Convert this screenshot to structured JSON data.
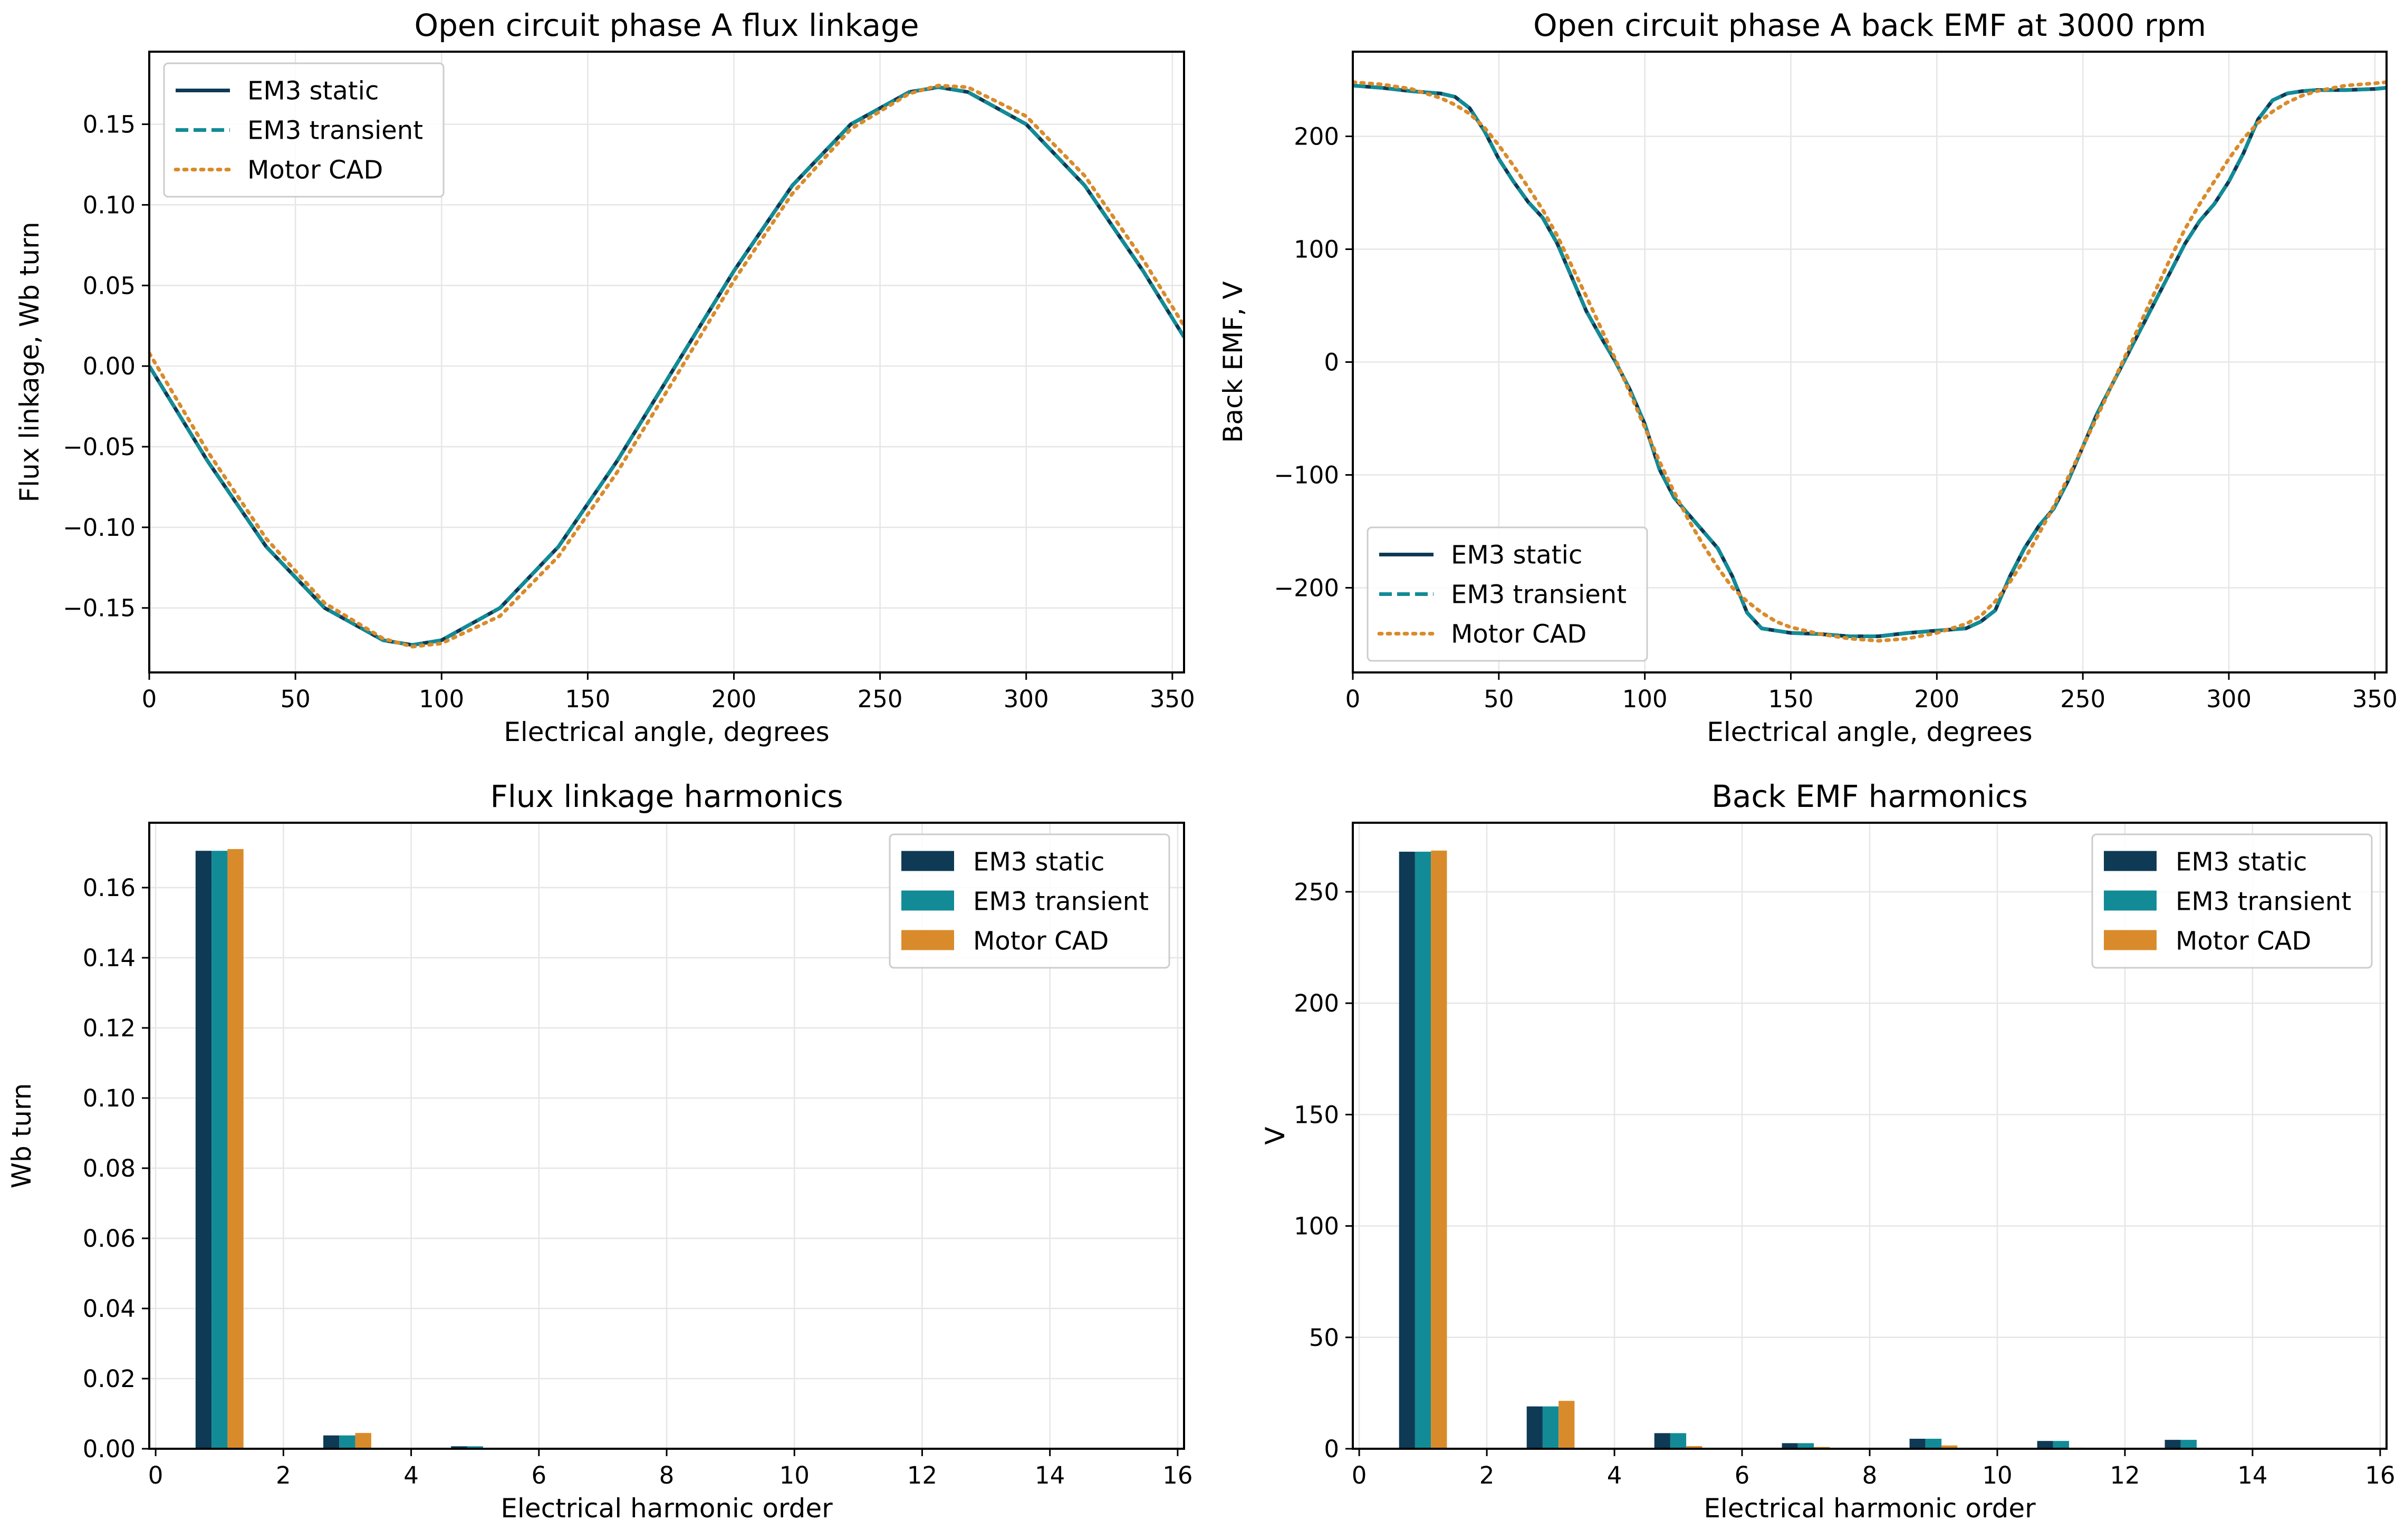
{
  "colors": {
    "em3_static": "#0e3a55",
    "em3_transient": "#128b96",
    "motor_cad": "#d98b2b"
  },
  "chart_data": [
    {
      "type": "line",
      "title": "Open circuit phase A flux linkage",
      "xlabel": "Electrical angle, degrees",
      "ylabel": "Flux linkage, Wb turn",
      "xlim": [
        0,
        354
      ],
      "ylim": [
        -0.19,
        0.195
      ],
      "xticks": [
        0,
        50,
        100,
        150,
        200,
        250,
        300,
        350
      ],
      "xtick_labels": [
        "0",
        "50",
        "100",
        "150",
        "200",
        "250",
        "300",
        "350"
      ],
      "yticks": [
        -0.15,
        -0.1,
        -0.05,
        0.0,
        0.05,
        0.1,
        0.15
      ],
      "ytick_labels": [
        "−0.15",
        "−0.10",
        "−0.05",
        "0.00",
        "0.05",
        "0.10",
        "0.15"
      ],
      "grid": true,
      "legend": "upper-left",
      "x": [
        0,
        20,
        40,
        60,
        80,
        90,
        100,
        120,
        140,
        160,
        180,
        200,
        220,
        240,
        260,
        270,
        280,
        300,
        320,
        340,
        354
      ],
      "series": [
        {
          "name": "EM3 static",
          "style": "solid",
          "color_key": "em3_static",
          "values": [
            0.0,
            -0.059,
            -0.112,
            -0.15,
            -0.17,
            -0.173,
            -0.17,
            -0.15,
            -0.112,
            -0.059,
            0.0,
            0.059,
            0.112,
            0.15,
            0.17,
            0.173,
            0.17,
            0.15,
            0.112,
            0.059,
            0.018
          ]
        },
        {
          "name": "EM3 transient",
          "style": "dashed",
          "color_key": "em3_transient",
          "values": [
            0.0,
            -0.059,
            -0.112,
            -0.15,
            -0.17,
            -0.173,
            -0.17,
            -0.15,
            -0.112,
            -0.059,
            0.0,
            0.059,
            0.112,
            0.15,
            0.17,
            0.173,
            0.17,
            0.15,
            0.112,
            0.059,
            0.018
          ]
        },
        {
          "name": "Motor CAD",
          "style": "dotted",
          "color_key": "motor_cad",
          "values": [
            0.008,
            -0.053,
            -0.107,
            -0.147,
            -0.169,
            -0.174,
            -0.172,
            -0.155,
            -0.118,
            -0.066,
            -0.007,
            0.053,
            0.107,
            0.147,
            0.169,
            0.174,
            0.173,
            0.155,
            0.118,
            0.066,
            0.025
          ]
        }
      ]
    },
    {
      "type": "line",
      "title": "Open circuit phase A back EMF at 3000 rpm",
      "xlabel": "Electrical angle, degrees",
      "ylabel": "Back EMF, V",
      "xlim": [
        0,
        354
      ],
      "ylim": [
        -275,
        275
      ],
      "xticks": [
        0,
        50,
        100,
        150,
        200,
        250,
        300,
        350
      ],
      "xtick_labels": [
        "0",
        "50",
        "100",
        "150",
        "200",
        "250",
        "300",
        "350"
      ],
      "yticks": [
        -200,
        -100,
        0,
        100,
        200
      ],
      "ytick_labels": [
        "−200",
        "−100",
        "0",
        "100",
        "200"
      ],
      "grid": true,
      "legend": "lower-left",
      "x": [
        0,
        10,
        20,
        30,
        35,
        40,
        45,
        50,
        55,
        60,
        65,
        70,
        75,
        80,
        85,
        90,
        95,
        100,
        105,
        110,
        115,
        120,
        125,
        130,
        135,
        140,
        145,
        150,
        160,
        170,
        180,
        190,
        200,
        210,
        215,
        220,
        225,
        230,
        235,
        240,
        245,
        250,
        255,
        260,
        265,
        270,
        275,
        280,
        285,
        290,
        295,
        300,
        305,
        310,
        315,
        320,
        325,
        330,
        340,
        350,
        354
      ],
      "series": [
        {
          "name": "EM3 static",
          "style": "solid",
          "color_key": "em3_static",
          "values": [
            245,
            243,
            240,
            238,
            235,
            225,
            205,
            180,
            160,
            142,
            128,
            105,
            75,
            45,
            22,
            0,
            -25,
            -55,
            -95,
            -120,
            -135,
            -150,
            -165,
            -190,
            -222,
            -236,
            -238,
            -240,
            -241,
            -243,
            -243,
            -240,
            -238,
            -236,
            -230,
            -220,
            -190,
            -165,
            -145,
            -130,
            -105,
            -75,
            -45,
            -20,
            5,
            30,
            55,
            80,
            105,
            125,
            140,
            160,
            185,
            215,
            232,
            238,
            240,
            241,
            241,
            242,
            243
          ]
        },
        {
          "name": "EM3 transient",
          "style": "dashed",
          "color_key": "em3_transient",
          "values": [
            245,
            243,
            240,
            238,
            235,
            225,
            205,
            180,
            160,
            142,
            128,
            105,
            75,
            45,
            22,
            0,
            -25,
            -55,
            -95,
            -120,
            -135,
            -150,
            -165,
            -190,
            -222,
            -236,
            -238,
            -240,
            -241,
            -243,
            -243,
            -240,
            -238,
            -236,
            -230,
            -220,
            -190,
            -165,
            -145,
            -130,
            -105,
            -75,
            -45,
            -20,
            5,
            30,
            55,
            80,
            105,
            125,
            140,
            160,
            185,
            215,
            232,
            238,
            240,
            241,
            241,
            242,
            243
          ]
        },
        {
          "name": "Motor CAD",
          "style": "dotted",
          "color_key": "motor_cad",
          "values": [
            248,
            246,
            242,
            234,
            228,
            220,
            208,
            192,
            174,
            155,
            135,
            112,
            85,
            58,
            30,
            2,
            -28,
            -58,
            -88,
            -115,
            -140,
            -162,
            -182,
            -200,
            -212,
            -222,
            -230,
            -235,
            -241,
            -245,
            -247,
            -245,
            -240,
            -232,
            -225,
            -212,
            -195,
            -175,
            -152,
            -128,
            -102,
            -75,
            -48,
            -20,
            8,
            36,
            64,
            92,
            118,
            140,
            160,
            180,
            198,
            212,
            222,
            230,
            236,
            240,
            245,
            247,
            248
          ]
        }
      ]
    },
    {
      "type": "bar",
      "title": "Flux linkage harmonics",
      "xlabel": "Electrical harmonic order",
      "ylabel": "Wb turn",
      "xlim": [
        -0.1,
        16.1
      ],
      "ylim": [
        0,
        0.1785
      ],
      "xticks": [
        0,
        2,
        4,
        6,
        8,
        10,
        12,
        14,
        16
      ],
      "xtick_labels": [
        "0",
        "2",
        "4",
        "6",
        "8",
        "10",
        "12",
        "14",
        "16"
      ],
      "yticks": [
        0.0,
        0.02,
        0.04,
        0.06,
        0.08,
        0.1,
        0.12,
        0.14,
        0.16
      ],
      "ytick_labels": [
        "0.00",
        "0.02",
        "0.04",
        "0.06",
        "0.08",
        "0.10",
        "0.12",
        "0.14",
        "0.16"
      ],
      "grid": true,
      "legend": "upper-right",
      "bar_width": 0.25,
      "categories": [
        1,
        3,
        5,
        7,
        9,
        11,
        13,
        15
      ],
      "series": [
        {
          "name": "EM3 static",
          "color_key": "em3_static",
          "values": [
            0.1705,
            0.0038,
            0.0007,
            0.0002,
            0.0001,
            0.0001,
            0.0001,
            0.0
          ]
        },
        {
          "name": "EM3 transient",
          "color_key": "em3_transient",
          "values": [
            0.1705,
            0.0038,
            0.0007,
            0.0002,
            0.0001,
            0.0001,
            0.0001,
            0.0
          ]
        },
        {
          "name": "Motor CAD",
          "color_key": "motor_cad",
          "values": [
            0.171,
            0.0045,
            0.0003,
            0.0001,
            0.0,
            0.0,
            0.0,
            0.0
          ]
        }
      ]
    },
    {
      "type": "bar",
      "title": "Back EMF harmonics",
      "xlabel": "Electrical harmonic order",
      "ylabel": "V",
      "xlim": [
        -0.1,
        16.1
      ],
      "ylim": [
        0,
        281
      ],
      "xticks": [
        0,
        2,
        4,
        6,
        8,
        10,
        12,
        14,
        16
      ],
      "xtick_labels": [
        "0",
        "2",
        "4",
        "6",
        "8",
        "10",
        "12",
        "14",
        "16"
      ],
      "yticks": [
        0,
        50,
        100,
        150,
        200,
        250
      ],
      "ytick_labels": [
        "0",
        "50",
        "100",
        "150",
        "200",
        "250"
      ],
      "grid": true,
      "legend": "upper-right",
      "bar_width": 0.25,
      "categories": [
        1,
        3,
        5,
        7,
        9,
        11,
        13,
        15
      ],
      "series": [
        {
          "name": "EM3 static",
          "color_key": "em3_static",
          "values": [
            268,
            19,
            7,
            2.5,
            4.5,
            3.5,
            4,
            0.3
          ]
        },
        {
          "name": "EM3 transient",
          "color_key": "em3_transient",
          "values": [
            268,
            19,
            7,
            2.5,
            4.5,
            3.5,
            4,
            0.3
          ]
        },
        {
          "name": "Motor CAD",
          "color_key": "motor_cad",
          "values": [
            268.5,
            21.5,
            1.2,
            0.8,
            1.5,
            0.5,
            0.3,
            0.1
          ]
        }
      ]
    }
  ]
}
